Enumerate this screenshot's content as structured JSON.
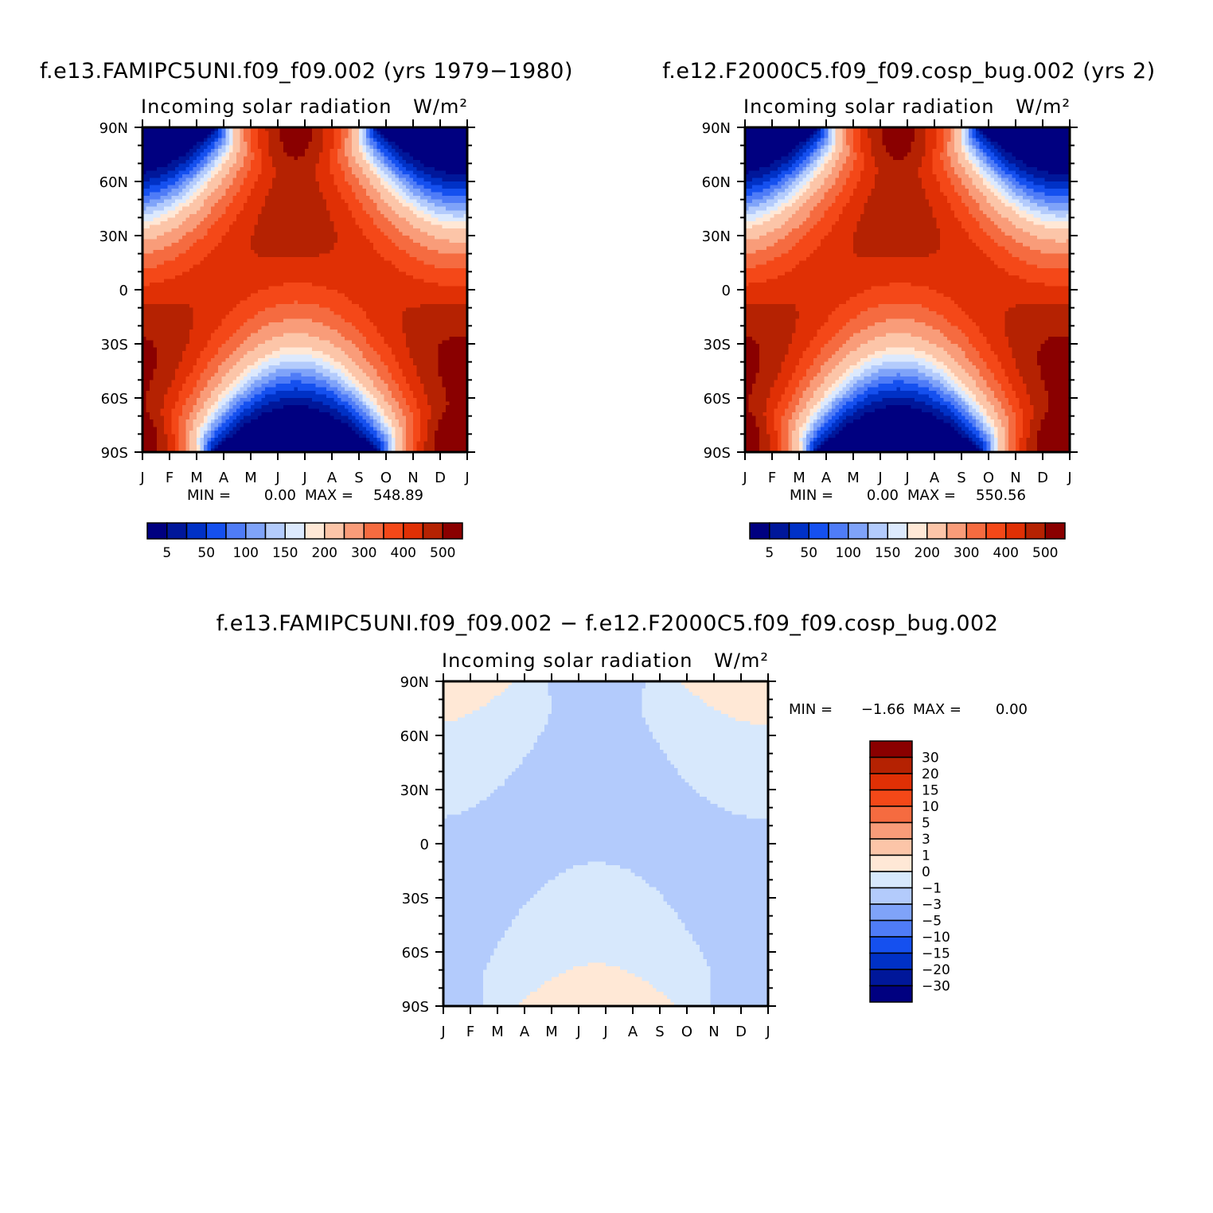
{
  "figure": {
    "panel_a_title": "f.e13.FAMIPC5UNI.f09_f09.002 (yrs 1979−1980)",
    "panel_b_title": "f.e12.F2000C5.f09_f09.cosp_bug.002 (yrs 2)",
    "panel_c_title": "f.e13.FAMIPC5UNI.f09_f09.002 − f.e12.F2000C5.f09_f09.cosp_bug.002",
    "subtitle_left": "Incoming solar radiation",
    "subtitle_units": "W/m²"
  },
  "palettes": {
    "absolute": [
      "#000080",
      "#00179a",
      "#0031c6",
      "#1550ef",
      "#4f7cf7",
      "#7fa3f9",
      "#b3cbfc",
      "#dce9fd",
      "#ffe8d6",
      "#fcc5a8",
      "#f99c79",
      "#f56b40",
      "#f44818",
      "#e03005",
      "#b52202",
      "#8a0000"
    ],
    "difference": [
      "#000080",
      "#00179a",
      "#0031c6",
      "#1550ef",
      "#4f7cf7",
      "#7fa3f9",
      "#b3cbfc",
      "#d7e8fc",
      "#ffe8d6",
      "#fcc5a8",
      "#f99c79",
      "#f56b40",
      "#f44818",
      "#e03005",
      "#b52202",
      "#8a0000"
    ]
  },
  "chart_data": [
    {
      "type": "heatmap",
      "id": "panel_a",
      "title": "f.e13.FAMIPC5UNI.f09_f09.002 (yrs 1979−1980)",
      "subtitle": "Incoming solar radiation",
      "units": "W/m²",
      "x_ticks": [
        "J",
        "F",
        "M",
        "A",
        "M",
        "J",
        "J",
        "A",
        "S",
        "O",
        "N",
        "D",
        "J"
      ],
      "y_ticks": [
        "90N",
        "60N",
        "30N",
        "0",
        "30S",
        "60S",
        "90S"
      ],
      "min_label": "MIN =",
      "min_value": "0.00",
      "max_label": "MAX =",
      "max_value": "548.89",
      "contour_levels": [
        5,
        25,
        50,
        75,
        100,
        125,
        150,
        175,
        200,
        250,
        300,
        350,
        400,
        450,
        500
      ],
      "colorbar_labels": [
        "5",
        "50",
        "100",
        "150",
        "200",
        "300",
        "400",
        "500"
      ]
    },
    {
      "type": "heatmap",
      "id": "panel_b",
      "title": "f.e12.F2000C5.f09_f09.cosp_bug.002 (yrs 2)",
      "subtitle": "Incoming solar radiation",
      "units": "W/m²",
      "x_ticks": [
        "J",
        "F",
        "M",
        "A",
        "M",
        "J",
        "J",
        "A",
        "S",
        "O",
        "N",
        "D",
        "J"
      ],
      "y_ticks": [
        "90N",
        "60N",
        "30N",
        "0",
        "30S",
        "60S",
        "90S"
      ],
      "min_label": "MIN =",
      "min_value": "0.00",
      "max_label": "MAX =",
      "max_value": "550.56",
      "contour_levels": [
        5,
        25,
        50,
        75,
        100,
        125,
        150,
        175,
        200,
        250,
        300,
        350,
        400,
        450,
        500
      ],
      "colorbar_labels": [
        "5",
        "50",
        "100",
        "150",
        "200",
        "300",
        "400",
        "500"
      ]
    },
    {
      "type": "heatmap",
      "id": "panel_c",
      "title": "f.e13.FAMIPC5UNI.f09_f09.002 − f.e12.F2000C5.f09_f09.cosp_bug.002",
      "subtitle": "Incoming solar radiation",
      "units": "W/m²",
      "x_ticks": [
        "J",
        "F",
        "M",
        "A",
        "M",
        "J",
        "J",
        "A",
        "S",
        "O",
        "N",
        "D",
        "J"
      ],
      "y_ticks": [
        "90N",
        "60N",
        "30N",
        "0",
        "30S",
        "60S",
        "90S"
      ],
      "min_label": "MIN =",
      "min_value": "−1.66",
      "max_label": "MAX =",
      "max_value": "0.00",
      "contour_levels": [
        -30,
        -20,
        -15,
        -10,
        -5,
        -3,
        -1,
        0,
        1,
        3,
        5,
        10,
        15,
        20,
        30
      ],
      "colorbar_labels": [
        "30",
        "20",
        "15",
        "10",
        "5",
        "3",
        "1",
        "0",
        "−1",
        "−3",
        "−5",
        "−10",
        "−15",
        "−20",
        "−30"
      ]
    }
  ]
}
